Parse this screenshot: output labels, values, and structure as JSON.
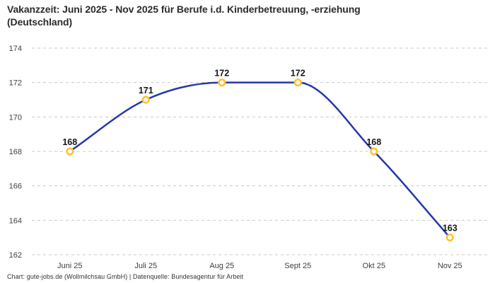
{
  "header": {
    "title_line1": "Vakanzzeit: Juni 2025 - Nov 2025 für Berufe i.d. Kinderbetreuung, -erziehung",
    "title_line2": "(Deutschland)"
  },
  "chart_data": {
    "type": "line",
    "title": "Vakanzzeit: Juni 2025 - Nov 2025 für Berufe i.d. Kinderbetreuung, -erziehung (Deutschland)",
    "categories": [
      "Juni 25",
      "Juli 25",
      "Aug 25",
      "Sept 25",
      "Okt 25",
      "Nov 25"
    ],
    "values": [
      168,
      171,
      172,
      172,
      168,
      163
    ],
    "yticks": [
      162,
      164,
      166,
      168,
      170,
      172,
      174
    ],
    "ylim": [
      162,
      174
    ],
    "xlabel": "",
    "ylabel": "",
    "grid": "horizontal-dashed",
    "legend": "none",
    "curve": "monotone",
    "data_labels": true,
    "colors": {
      "line": "#2438aa",
      "marker_ring": "#ffc233",
      "marker_fill": "#ffffff",
      "gridline": "#c9c9c9",
      "tick_text": "#3f3f3f",
      "label_text": "#141414"
    }
  },
  "footer": {
    "text": "Chart: gute-jobs.de (Wollmilchsau GmbH) | Datenquelle: Bundesagentur für Arbeit"
  }
}
